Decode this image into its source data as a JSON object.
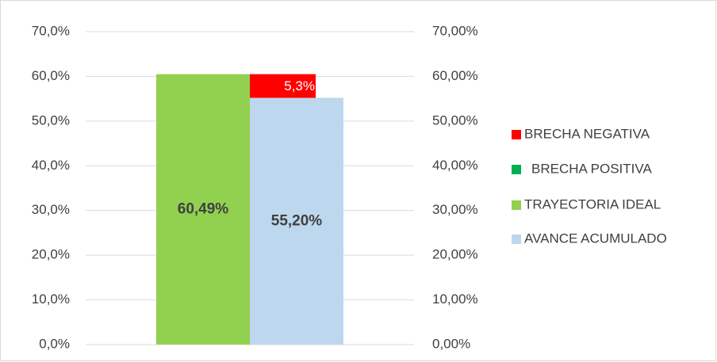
{
  "chart_data": {
    "type": "bar",
    "categories": [
      null
    ],
    "series": [
      {
        "name": "BRECHA NEGATIVA",
        "color": "#ff0000",
        "values": [
          5.3
        ],
        "value_labels": [
          "5,3%"
        ]
      },
      {
        "name": "BRECHA POSITIVA",
        "color": "#00b050",
        "values": [
          0
        ]
      },
      {
        "name": "TRAYECTORIA IDEAL",
        "color": "#92d050",
        "values": [
          60.49
        ],
        "value_labels": [
          "60,49%"
        ]
      },
      {
        "name": "AVANCE ACUMULADO",
        "color": "#bdd7ee",
        "values": [
          55.2
        ],
        "value_labels": [
          "55,20%"
        ]
      }
    ],
    "ylim": [
      0,
      70
    ],
    "yticks": [
      {
        "value": 0,
        "label": "0,0%"
      },
      {
        "value": 10,
        "label": "10,0%"
      },
      {
        "value": 20,
        "label": "20,0%"
      },
      {
        "value": 30,
        "label": "30,0%"
      },
      {
        "value": 40,
        "label": "40,0%"
      },
      {
        "value": 50,
        "label": "50,0%"
      },
      {
        "value": 60,
        "label": "60,0%"
      },
      {
        "value": 70,
        "label": "70,0%"
      }
    ],
    "y2lim": [
      0,
      70
    ],
    "y2ticks": [
      {
        "value": 0,
        "label": "0,00%"
      },
      {
        "value": 10,
        "label": "10,00%"
      },
      {
        "value": 20,
        "label": "20,00%"
      },
      {
        "value": 30,
        "label": "30,00%"
      },
      {
        "value": 40,
        "label": "40,00%"
      },
      {
        "value": 50,
        "label": "50,00%"
      },
      {
        "value": 60,
        "label": "60,00%"
      },
      {
        "value": 70,
        "label": "70,00%"
      }
    ],
    "grid": true,
    "legend": "right"
  }
}
